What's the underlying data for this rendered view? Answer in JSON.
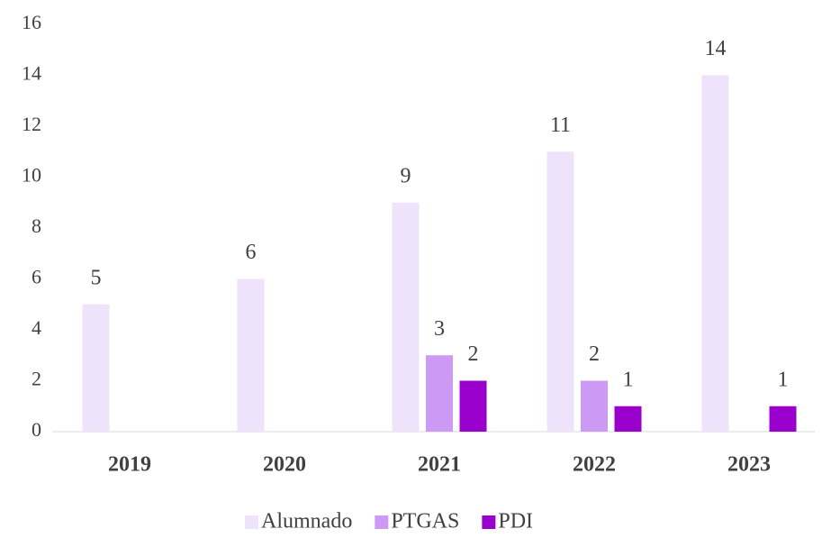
{
  "chart_data": {
    "type": "bar",
    "categories": [
      "2019",
      "2020",
      "2021",
      "2022",
      "2023"
    ],
    "series": [
      {
        "name": "Alumnado",
        "color": "#efe3fb",
        "values": [
          5,
          6,
          9,
          11,
          14
        ]
      },
      {
        "name": "PTGAS",
        "color": "#cc99f5",
        "values": [
          null,
          null,
          3,
          2,
          null
        ]
      },
      {
        "name": "PDI",
        "color": "#9900cc",
        "values": [
          null,
          null,
          2,
          1,
          1
        ]
      }
    ],
    "ylim": [
      0,
      16
    ],
    "yticks": [
      0,
      2,
      4,
      6,
      8,
      10,
      12,
      14,
      16
    ],
    "grid": false,
    "legend": "bottom"
  }
}
